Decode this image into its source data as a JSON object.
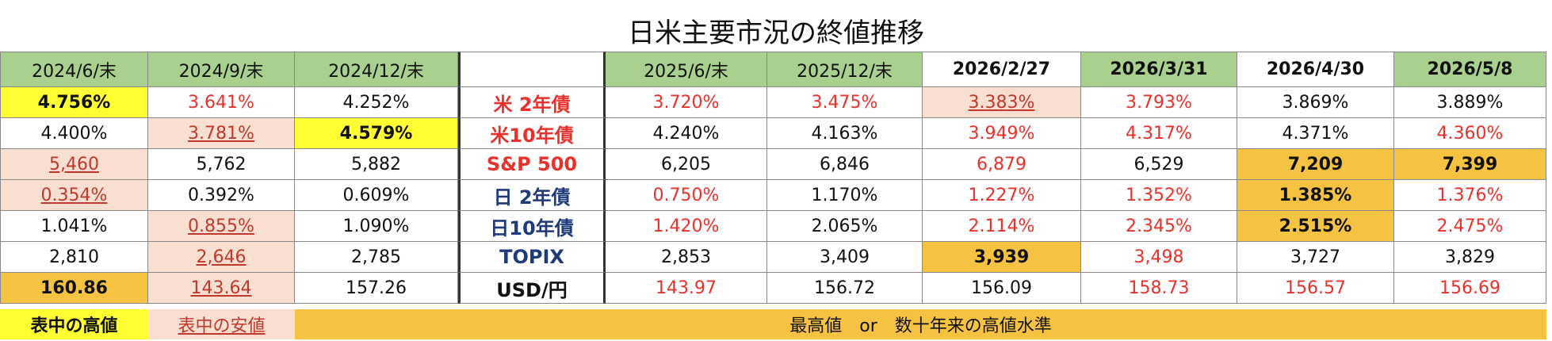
{
  "title": "日米主要市況の終値推移",
  "table": {
    "columns": [
      "2024/6/末",
      "2024/9/末",
      "2024/12/末",
      "2025/6/末",
      "2025/12/末",
      "2026/2/27",
      "2026/3/31",
      "2026/4/30",
      "2026/5/8"
    ],
    "rows": [
      {
        "label": "米 2年債",
        "values": [
          "4.756%",
          "3.641%",
          "4.252%",
          "3.720%",
          "3.475%",
          "3.383%",
          "3.793%",
          "3.869%",
          "3.889%"
        ]
      },
      {
        "label": "米10年債",
        "values": [
          "4.400%",
          "3.781%",
          "4.579%",
          "4.240%",
          "4.163%",
          "3.949%",
          "4.317%",
          "4.371%",
          "4.360%"
        ]
      },
      {
        "label": "S&P 500",
        "values": [
          "5,460",
          "5,762",
          "5,882",
          "6,205",
          "6,846",
          "6,879",
          "6,529",
          "7,209",
          "7,399"
        ]
      },
      {
        "label": "日 2年債",
        "values": [
          "0.354%",
          "0.392%",
          "0.609%",
          "0.750%",
          "1.170%",
          "1.227%",
          "1.352%",
          "1.385%",
          "1.376%"
        ]
      },
      {
        "label": "日10年債",
        "values": [
          "1.041%",
          "0.855%",
          "1.090%",
          "1.420%",
          "2.065%",
          "2.114%",
          "2.345%",
          "2.515%",
          "2.475%"
        ]
      },
      {
        "label": "TOPIX",
        "values": [
          "2,810",
          "2,646",
          "2,785",
          "2,853",
          "3,409",
          "3,939",
          "3,498",
          "3,727",
          "3,829"
        ]
      },
      {
        "label": "USD/円",
        "values": [
          "160.86",
          "143.64",
          "157.26",
          "143.97",
          "156.72",
          "156.09",
          "158.73",
          "156.57",
          "156.69"
        ]
      }
    ]
  },
  "legend": {
    "high": "表中の高値",
    "low": "表中の安値",
    "record": "最高値　or　数十年来の高値水準"
  }
}
